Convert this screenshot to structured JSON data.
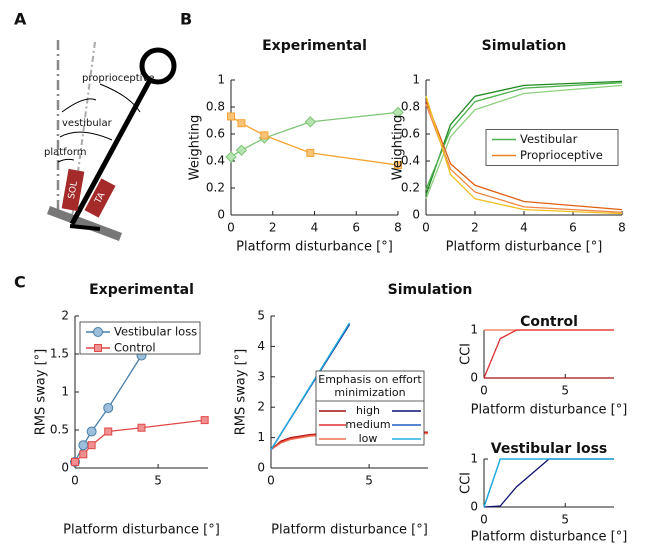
{
  "panel_labels": [
    "A",
    "B",
    "C"
  ],
  "diagram": {
    "labels": [
      "proprioceptive",
      "vestibular",
      "platform",
      "SOL",
      "TA"
    ]
  },
  "group_titles": [
    "Simulation"
  ],
  "chart_data": [
    {
      "type": "line",
      "title": "Experimental",
      "xlabel": "Platform disturbance [°]",
      "ylabel": "Weighting",
      "xlim": [
        0,
        8
      ],
      "xticks": [
        0,
        2,
        4,
        6,
        8
      ],
      "ylim": [
        0,
        1
      ],
      "yticks": [
        0,
        0.2,
        0.4,
        0.6,
        0.8,
        1
      ],
      "series": [
        {
          "color": "#7cc576",
          "marker": "diamond",
          "marker_fill": "#b5e3b0",
          "x": [
            0,
            0.5,
            1.6,
            3.8,
            8
          ],
          "values": [
            0.43,
            0.48,
            0.57,
            0.69,
            0.76
          ]
        },
        {
          "color": "#f5a330",
          "marker": "square",
          "marker_fill": "#f9c37a",
          "x": [
            0,
            0.5,
            1.6,
            3.8,
            8
          ],
          "values": [
            0.73,
            0.68,
            0.59,
            0.46,
            0.37
          ]
        }
      ]
    },
    {
      "type": "line",
      "title": "Simulation",
      "xlabel": "Platform disturbance [°]",
      "ylabel": "Weighting",
      "xlim": [
        0,
        8
      ],
      "xticks": [
        0,
        2,
        4,
        6,
        8
      ],
      "ylim": [
        0,
        1
      ],
      "yticks": [
        0,
        0.2,
        0.4,
        0.6,
        0.8,
        1
      ],
      "x": [
        0,
        1,
        2,
        4,
        8
      ],
      "legend_loc": "center right",
      "series": [
        {
          "name": "Vestibular",
          "color": "#4cb04c",
          "lines": [
            {
              "color": "#1e8a1e",
              "values": [
                0.15,
                0.67,
                0.88,
                0.96,
                0.99
              ]
            },
            {
              "color": "#4cb04c",
              "values": [
                0.19,
                0.63,
                0.84,
                0.94,
                0.98
              ]
            },
            {
              "color": "#8fd080",
              "values": [
                0.12,
                0.58,
                0.78,
                0.9,
                0.96
              ]
            }
          ]
        },
        {
          "name": "Proprioceptive",
          "color": "#f08020",
          "lines": [
            {
              "color": "#e06010",
              "values": [
                0.85,
                0.38,
                0.22,
                0.1,
                0.04
              ]
            },
            {
              "color": "#f08848",
              "values": [
                0.82,
                0.34,
                0.17,
                0.06,
                0.02
              ]
            },
            {
              "color": "#f0c020",
              "values": [
                0.88,
                0.3,
                0.12,
                0.04,
                0.01
              ]
            }
          ]
        }
      ]
    },
    {
      "type": "line",
      "title": "Experimental",
      "xlabel": "Platform disturbance [°]",
      "ylabel": "RMS sway [°]",
      "xlim": [
        0,
        8
      ],
      "xticks": [
        0,
        5
      ],
      "ylim": [
        0,
        2
      ],
      "yticks": [
        0,
        0.5,
        1,
        1.5,
        2
      ],
      "legend_loc": "upper left",
      "series": [
        {
          "name": "Vestibular loss",
          "color": "#4a7fa8",
          "marker": "circle",
          "marker_fill": "#9dbfdc",
          "x": [
            0,
            0.5,
            1,
            2,
            4
          ],
          "values": [
            0.08,
            0.3,
            0.48,
            0.79,
            1.48
          ]
        },
        {
          "name": "Control",
          "color": "#e04848",
          "marker": "square",
          "marker_fill": "#f09090",
          "x": [
            0,
            0.5,
            1,
            2,
            4,
            7.8
          ],
          "values": [
            0.08,
            0.18,
            0.3,
            0.48,
            0.53,
            0.63
          ]
        }
      ]
    },
    {
      "type": "line",
      "xlabel": "Platform disturbance [°]",
      "ylabel": "RMS sway [°]",
      "xlim": [
        0,
        8
      ],
      "xticks": [
        0,
        5
      ],
      "ylim": [
        0,
        5
      ],
      "yticks": [
        0,
        1,
        2,
        3,
        4,
        5
      ],
      "legend_title": "Emphasis on effort minimization",
      "legend_loc": "center right",
      "series": [
        {
          "name": "high",
          "color": "#a01010",
          "x": [
            0,
            0.5,
            1,
            2,
            3,
            4,
            6,
            8
          ],
          "values": [
            0.6,
            0.88,
            1.0,
            1.1,
            1.14,
            1.16,
            1.17,
            1.18
          ]
        },
        {
          "name": "medium",
          "color": "#e03030",
          "x": [
            0,
            0.5,
            1,
            2,
            3,
            4,
            6,
            8
          ],
          "values": [
            0.6,
            0.85,
            0.97,
            1.08,
            1.12,
            1.14,
            1.15,
            1.16
          ]
        },
        {
          "name": "low",
          "color": "#f07050",
          "x": [
            0,
            0.5,
            1,
            2,
            3,
            4,
            6,
            8
          ],
          "values": [
            0.6,
            0.82,
            0.94,
            1.05,
            1.09,
            1.11,
            1.12,
            1.13
          ]
        },
        {
          "color": "#101070",
          "x": [
            0,
            4
          ],
          "values": [
            0.6,
            4.72
          ]
        },
        {
          "color": "#1f5fbf",
          "x": [
            0,
            4
          ],
          "values": [
            0.6,
            4.75
          ]
        },
        {
          "color": "#20b0e0",
          "x": [
            0,
            4
          ],
          "values": [
            0.6,
            4.78
          ]
        }
      ]
    },
    {
      "type": "line",
      "title": "Control",
      "xlabel": "Platform disturbance [°]",
      "ylabel": "CCI",
      "xlim": [
        0,
        8
      ],
      "xticks": [
        0,
        5
      ],
      "ylim": [
        0,
        1
      ],
      "yticks": [
        0,
        1
      ],
      "x": [
        0,
        1,
        2,
        4,
        8
      ],
      "series": [
        {
          "color": "#f07050",
          "values": [
            1,
            1,
            1,
            1,
            1
          ]
        },
        {
          "color": "#e03030",
          "values": [
            0,
            0.82,
            1,
            1,
            1
          ]
        },
        {
          "color": "#a01010",
          "values": [
            0,
            0,
            0,
            0,
            0
          ]
        }
      ]
    },
    {
      "type": "line",
      "title": "Vestibular loss",
      "xlabel": "Platform disturbance [°]",
      "ylabel": "CCI",
      "xlim": [
        0,
        8
      ],
      "xticks": [
        0,
        5
      ],
      "ylim": [
        0,
        1
      ],
      "yticks": [
        0,
        1
      ],
      "x": [
        0,
        1,
        2,
        4,
        8
      ],
      "series": [
        {
          "color": "#101070",
          "values": [
            0,
            0.02,
            0.42,
            1,
            1
          ]
        },
        {
          "color": "#1f5fbf",
          "values": [
            0,
            1,
            1,
            1,
            1
          ]
        },
        {
          "color": "#20b0e0",
          "values": [
            0,
            1,
            1,
            1,
            1
          ]
        }
      ]
    }
  ]
}
